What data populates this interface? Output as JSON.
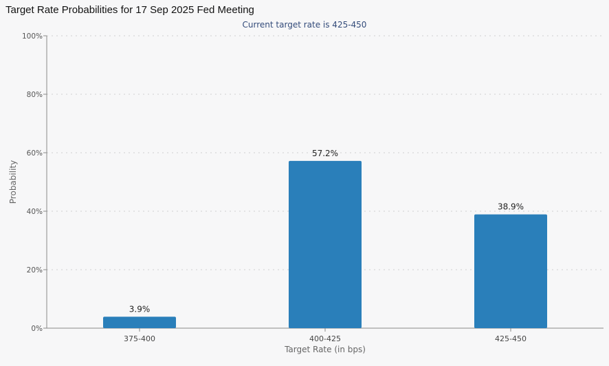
{
  "chart_data": {
    "type": "bar",
    "title": "Target Rate Probabilities for 17 Sep 2025 Fed Meeting",
    "subtitle": "Current target rate is 425-450",
    "xlabel": "Target Rate (in bps)",
    "ylabel": "Probability",
    "categories": [
      "375-400",
      "400-425",
      "425-450"
    ],
    "values": [
      3.9,
      57.2,
      38.9
    ],
    "value_labels": [
      "3.9%",
      "57.2%",
      "38.9%"
    ],
    "ylim": [
      0,
      100
    ],
    "yticks": [
      0,
      20,
      40,
      60,
      80,
      100
    ],
    "ytick_labels": [
      "0%",
      "20%",
      "40%",
      "60%",
      "80%",
      "100%"
    ],
    "grid": true,
    "legend": "none",
    "colors": {
      "bar": "#2a7fba",
      "background": "#f7f7f8"
    }
  }
}
